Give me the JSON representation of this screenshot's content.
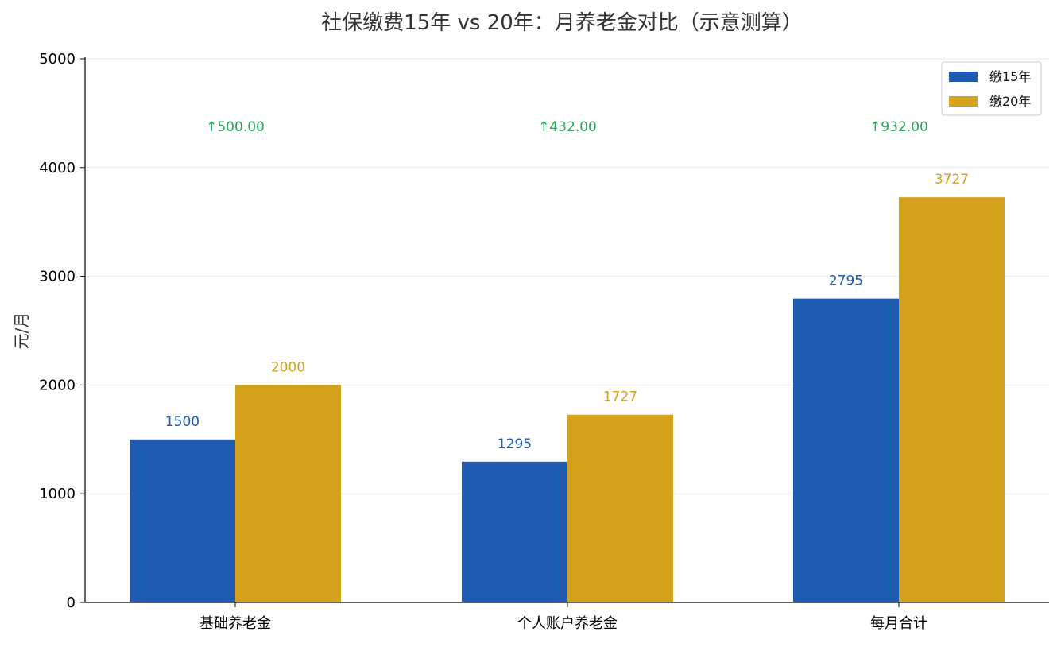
{
  "chart_data": {
    "type": "bar",
    "title": "社保缴费15年 vs 20年：月养老金对比（示意测算）",
    "xlabel": "",
    "ylabel": "元/月",
    "categories": [
      "基础养老金",
      "个人账户养老金",
      "每月合计"
    ],
    "series": [
      {
        "name": "缴15年",
        "values": [
          1500,
          1295,
          2795
        ],
        "labels": [
          "1500",
          "1295",
          "2795"
        ],
        "color": "#1f5bb0"
      },
      {
        "name": "缴20年",
        "values": [
          2000,
          1727,
          3727
        ],
        "labels": [
          "2000",
          "1727",
          "3727"
        ],
        "color": "#d4a21a"
      }
    ],
    "differences": [
      "↑500.00",
      "↑432.00",
      "↑932.00"
    ],
    "difference_color": "#22aa55",
    "ylim": [
      0,
      5000
    ],
    "yticks": [
      0,
      1000,
      2000,
      3000,
      4000,
      5000
    ],
    "ytick_labels": [
      "0",
      "1000",
      "2000",
      "3000",
      "4000",
      "5000"
    ],
    "grid": true,
    "legend_position": "top-right"
  }
}
